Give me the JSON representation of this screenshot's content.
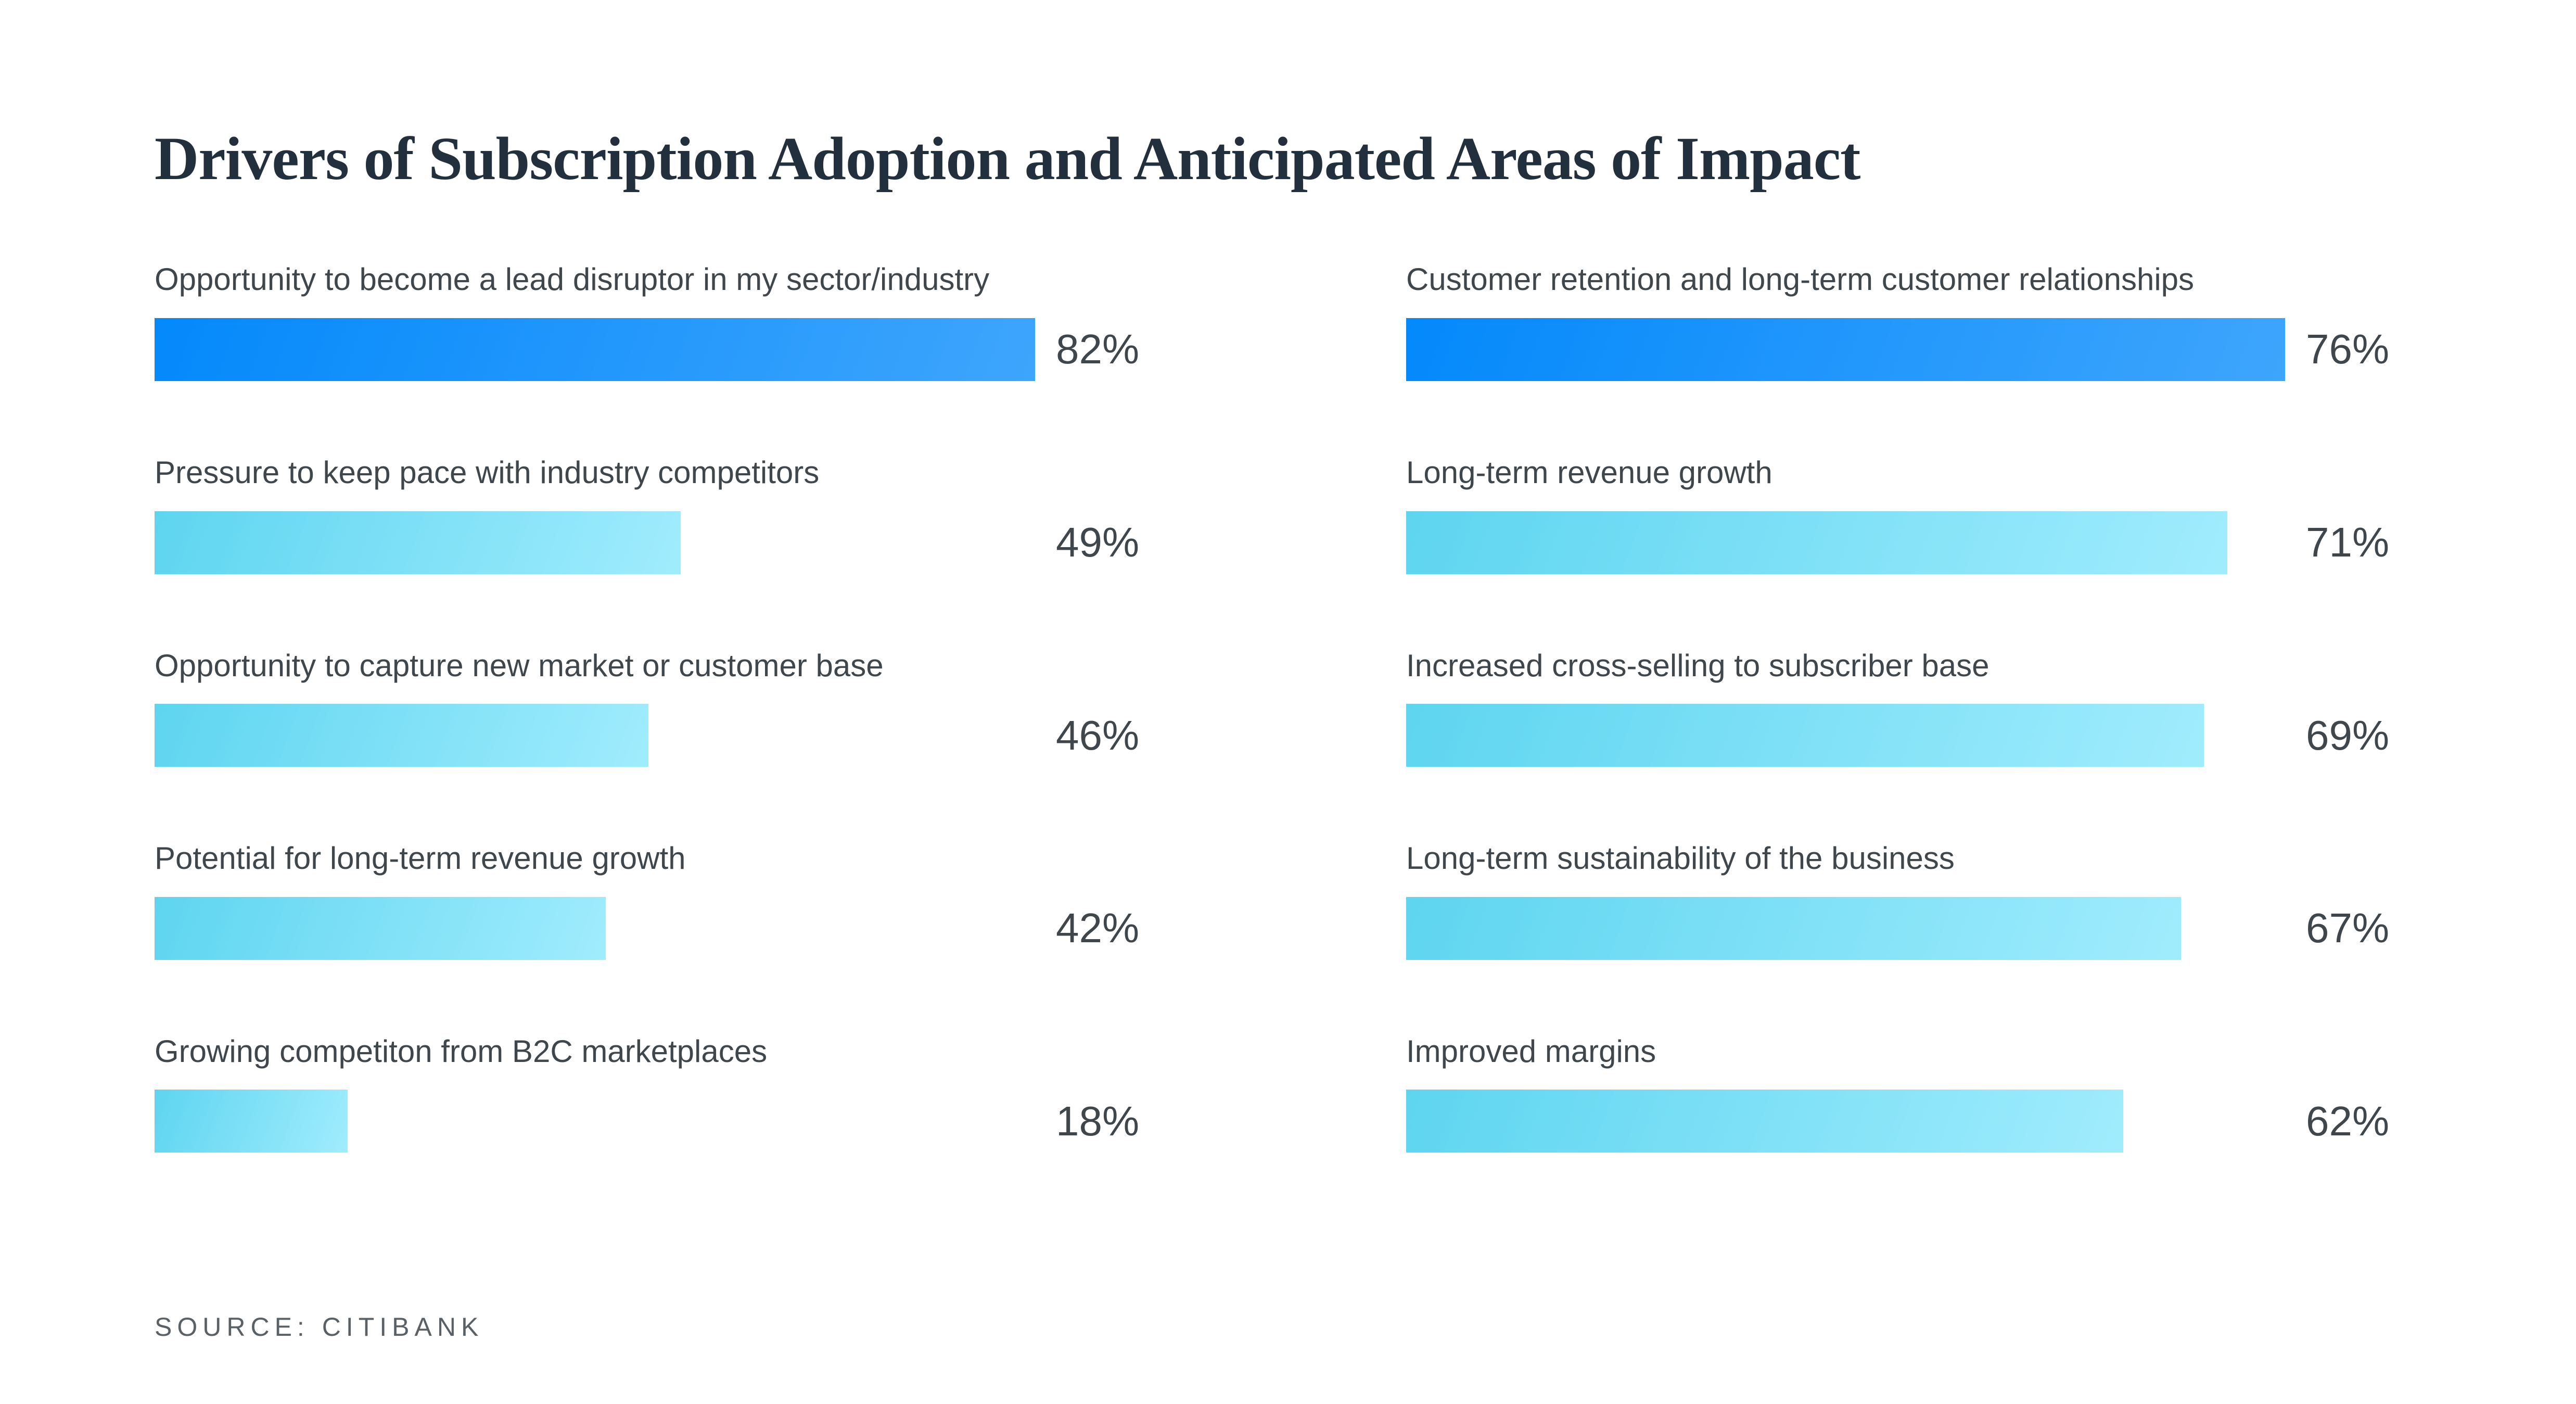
{
  "title": "Drivers of Subscription Adoption and Anticipated Areas of Impact",
  "source_note": "SOURCE: CITIBANK",
  "colors": {
    "page_background": "#ffffff",
    "title_text": "#22303e",
    "label_text": "#3f474c",
    "value_text": "#3f474c",
    "source_text": "#5a6166",
    "blue_gradient_start": "#0489fb",
    "blue_gradient_end": "#3ea5fc",
    "cyan_gradient_start": "#5ed5f0",
    "cyan_gradient_end": "#a0ecfd"
  },
  "chart_data": {
    "type": "bar",
    "orientation": "horizontal",
    "title": "Drivers of Subscription Adoption and Anticipated Areas of Impact",
    "source": "SOURCE: CITIBANK",
    "value_suffix": "%",
    "grid": false,
    "legend": false,
    "axis_labels_shown": false,
    "columns": [
      {
        "side": "left",
        "max_value": 82,
        "items": [
          {
            "label": "Opportunity to become a lead disruptor in my sector/industry",
            "value": 82,
            "display": "82%",
            "bar_style": "blue"
          },
          {
            "label": "Pressure to keep pace with industry competitors",
            "value": 49,
            "display": "49%",
            "bar_style": "cyan"
          },
          {
            "label": "Opportunity to capture new market or customer base",
            "value": 46,
            "display": "46%",
            "bar_style": "cyan"
          },
          {
            "label": "Potential for long-term revenue growth",
            "value": 42,
            "display": "42%",
            "bar_style": "cyan"
          },
          {
            "label": "Growing competiton from B2C marketplaces",
            "value": 18,
            "display": "18%",
            "bar_style": "cyan"
          }
        ]
      },
      {
        "side": "right",
        "max_value": 76,
        "items": [
          {
            "label": "Customer retention and long-term customer relationships",
            "value": 76,
            "display": "76%",
            "bar_style": "blue"
          },
          {
            "label": "Long-term revenue growth",
            "value": 71,
            "display": "71%",
            "bar_style": "cyan"
          },
          {
            "label": "Increased cross-selling to subscriber base",
            "value": 69,
            "display": "69%",
            "bar_style": "cyan"
          },
          {
            "label": "Long-term sustainability of the business",
            "value": 67,
            "display": "67%",
            "bar_style": "cyan"
          },
          {
            "label": "Improved margins",
            "value": 62,
            "display": "62%",
            "bar_style": "cyan"
          }
        ]
      }
    ]
  }
}
